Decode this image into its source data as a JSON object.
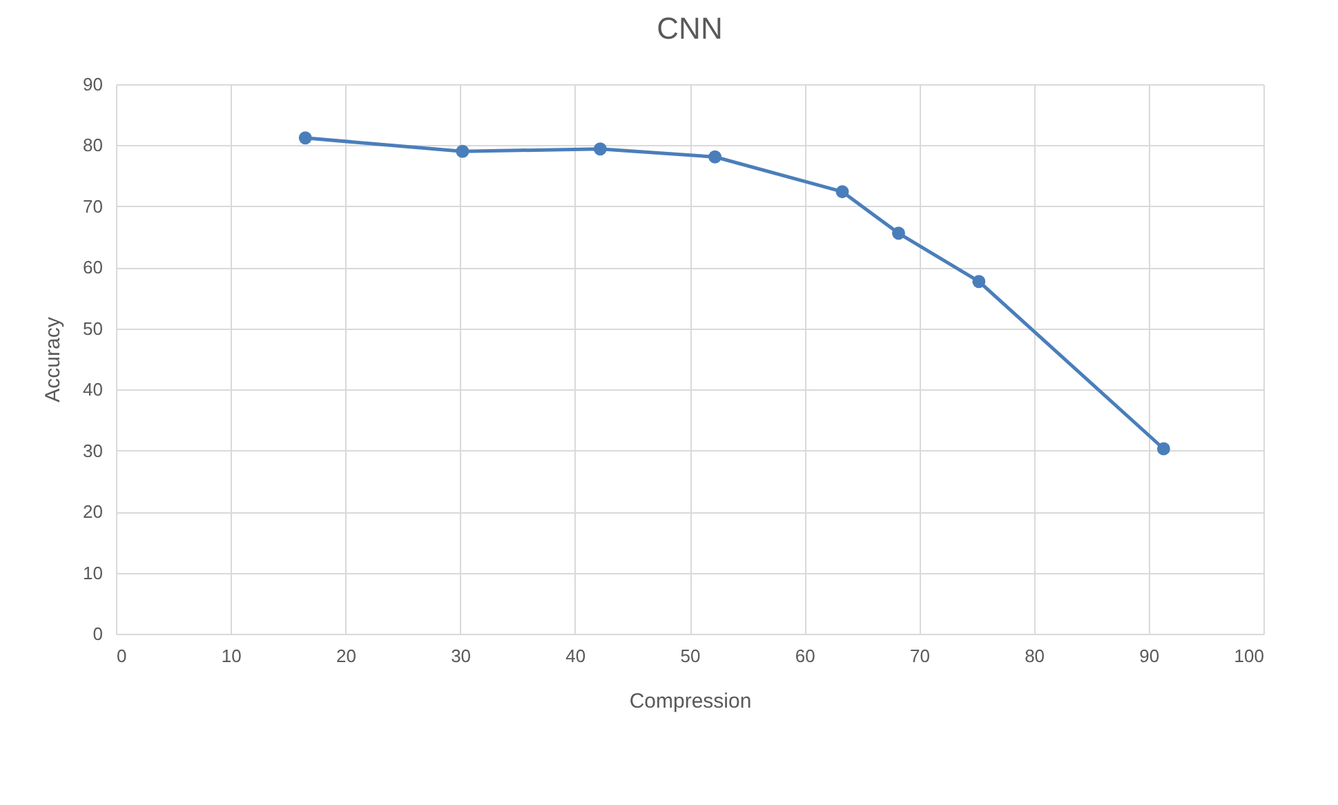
{
  "chart_data": {
    "type": "line",
    "title": "CNN",
    "xlabel": "Compression",
    "ylabel": "Accuracy",
    "x": [
      16.5,
      30.2,
      42.2,
      52.2,
      63.3,
      68.2,
      75.2,
      91.3
    ],
    "series": [
      {
        "color": "#4a7ebb",
        "values": [
          81.2,
          79.0,
          79.4,
          78.1,
          72.4,
          65.6,
          57.7,
          30.3
        ]
      }
    ],
    "xlim": [
      0,
      100
    ],
    "xticks": [
      0,
      10,
      20,
      30,
      40,
      50,
      60,
      70,
      80,
      90,
      100
    ],
    "ylim": [
      0,
      90
    ],
    "yticks": [
      0,
      10,
      20,
      30,
      40,
      50,
      60,
      70,
      80,
      90
    ],
    "grid": true,
    "marker": "circle",
    "line_style": "solid"
  }
}
